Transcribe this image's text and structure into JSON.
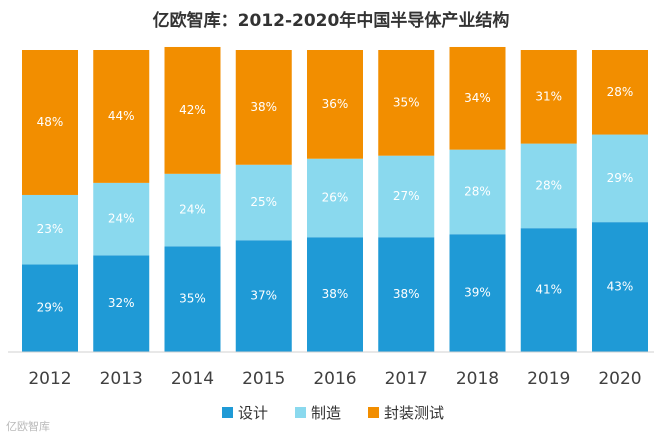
{
  "chart_data": {
    "type": "bar",
    "stacked": true,
    "title": "亿欧智库：2012-2020年中国半导体产业结构",
    "categories": [
      "2012",
      "2013",
      "2014",
      "2015",
      "2016",
      "2017",
      "2018",
      "2019",
      "2020"
    ],
    "series": [
      {
        "name": "设计",
        "color": "#1f9ad6",
        "values": [
          29,
          32,
          35,
          37,
          38,
          38,
          39,
          41,
          43
        ]
      },
      {
        "name": "制造",
        "color": "#8ad9ee",
        "values": [
          23,
          24,
          24,
          25,
          26,
          27,
          28,
          28,
          29
        ]
      },
      {
        "name": "封装测试",
        "color": "#f28e00",
        "values": [
          48,
          44,
          42,
          38,
          36,
          35,
          34,
          31,
          28
        ]
      }
    ],
    "value_suffix": "%",
    "ylim": [
      0,
      100
    ],
    "grid": false,
    "legend_position": "bottom"
  },
  "watermark": "亿欧智库"
}
